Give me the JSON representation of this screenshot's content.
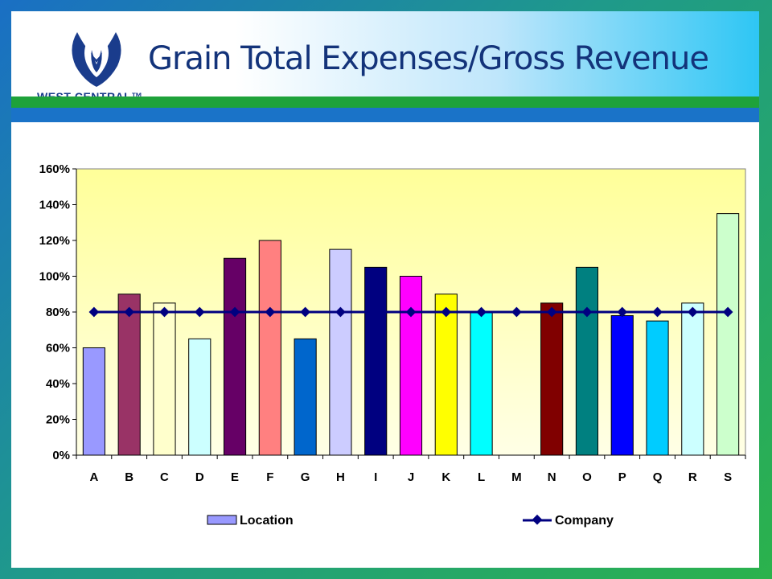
{
  "slide": {
    "title": "Grain Total Expenses/Gross Revenue",
    "logo_text": "WEST CENTRAL™",
    "colors": {
      "frame_blue": "#1a73c8",
      "frame_green": "#1ea23a",
      "title": "#13337a",
      "logo": "#1a3c8c"
    }
  },
  "chart_data": {
    "type": "bar",
    "categories": [
      "A",
      "B",
      "C",
      "D",
      "E",
      "F",
      "G",
      "H",
      "I",
      "J",
      "K",
      "L",
      "M",
      "N",
      "O",
      "P",
      "Q",
      "R",
      "S"
    ],
    "series": [
      {
        "name": "Location",
        "kind": "bar",
        "values": [
          60,
          90,
          85,
          65,
          110,
          120,
          65,
          115,
          105,
          100,
          90,
          80,
          0,
          85,
          105,
          78,
          75,
          85,
          135
        ],
        "colors": [
          "#9999ff",
          "#993366",
          "#ffffcc",
          "#ccffff",
          "#660066",
          "#ff8080",
          "#0066cc",
          "#ccccff",
          "#000080",
          "#ff00ff",
          "#ffff00",
          "#00ffff",
          "#800080",
          "#800000",
          "#008080",
          "#0000ff",
          "#00ccff",
          "#ccffff",
          "#ccffcc"
        ]
      },
      {
        "name": "Company",
        "kind": "line",
        "values": [
          80,
          80,
          80,
          80,
          80,
          80,
          80,
          80,
          80,
          80,
          80,
          80,
          80,
          80,
          80,
          80,
          80,
          80,
          80
        ],
        "color": "#000080"
      }
    ],
    "y_ticks": [
      "0%",
      "20%",
      "40%",
      "60%",
      "80%",
      "100%",
      "120%",
      "140%",
      "160%"
    ],
    "ylim": [
      0,
      160
    ],
    "y_unit": "%",
    "grid": false,
    "plot_background": "gradient yellow (#ffff99 to #ffffe0)",
    "legend_placement": "bottom"
  }
}
